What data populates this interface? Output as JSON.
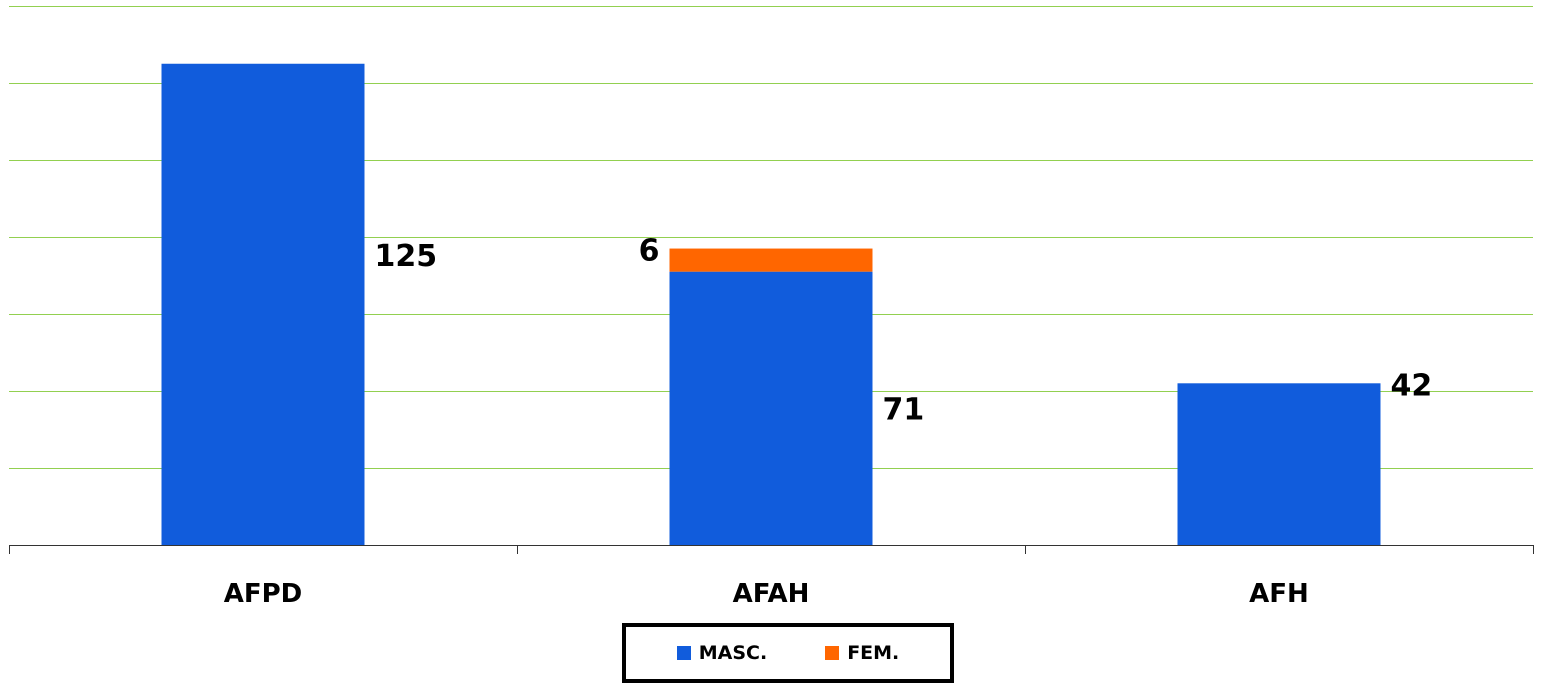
{
  "chart_data": {
    "type": "bar",
    "stacked": true,
    "categories": [
      "AFPD",
      "AFAH",
      "AFH"
    ],
    "series": [
      {
        "name": "MASC.",
        "color": "#115CDC",
        "values": [
          125,
          71,
          42
        ],
        "labels": [
          "125",
          "71",
          "42"
        ]
      },
      {
        "name": "FEM.",
        "color": "#FF6600",
        "values": [
          0,
          6,
          0
        ],
        "labels": [
          "",
          "6",
          ""
        ]
      }
    ],
    "ylim": [
      0,
      140
    ],
    "gridline_step": 20,
    "grid": true,
    "grid_color": "#92D050",
    "legend_position": "bottom",
    "title": "",
    "xlabel": "",
    "ylabel": ""
  }
}
